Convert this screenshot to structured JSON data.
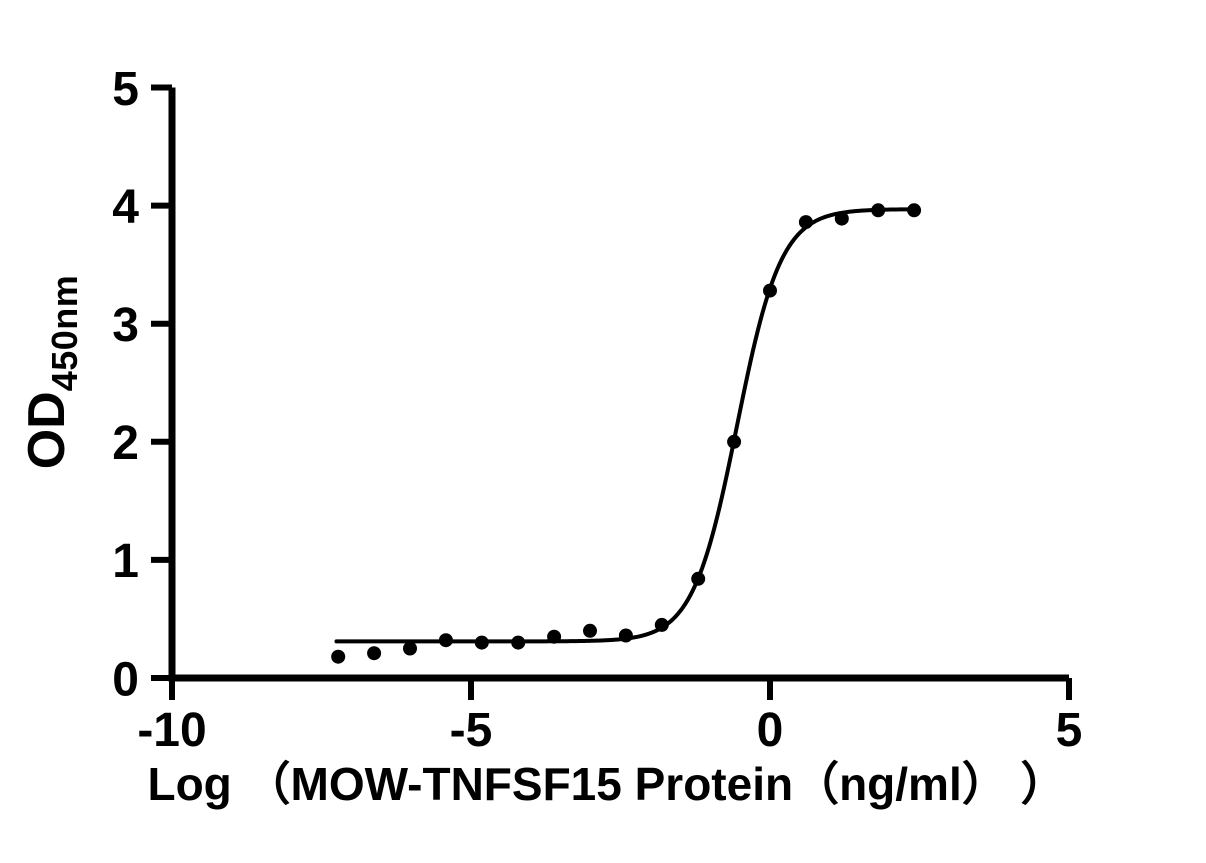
{
  "figure": {
    "background": "#ffffff",
    "foreground": "#000000"
  },
  "chart_data": {
    "type": "scatter",
    "title": "",
    "xlabel": "Log （MOW-TNFSF15 Protein（ng/ml） ）",
    "ylabel_main": "OD",
    "ylabel_sub": "450nm",
    "xlim": [
      -10,
      5
    ],
    "ylim": [
      0,
      5
    ],
    "x_ticks": [
      -10,
      -5,
      0,
      5
    ],
    "y_ticks": [
      0,
      1,
      2,
      3,
      4,
      5
    ],
    "grid": false,
    "legend": null,
    "points": {
      "x": [
        -7.22,
        -6.62,
        -6.02,
        -5.42,
        -4.82,
        -4.21,
        -3.61,
        -3.01,
        -2.41,
        -1.81,
        -1.2,
        -0.6,
        0.0,
        0.6,
        1.2,
        1.81,
        2.41
      ],
      "y": [
        0.18,
        0.21,
        0.25,
        0.32,
        0.3,
        0.3,
        0.35,
        0.4,
        0.36,
        0.45,
        0.84,
        2.0,
        3.28,
        3.86,
        3.89,
        3.96,
        3.96
      ]
    },
    "fit_curve": {
      "model": "4PL",
      "bottom": 0.31,
      "top": 3.97,
      "log_ec50": -0.55,
      "hill_slope": 1.18,
      "x_start": -7.25,
      "x_end": 2.41
    },
    "marker": {
      "shape": "circle",
      "color": "#000000",
      "radius_px": 7
    }
  }
}
